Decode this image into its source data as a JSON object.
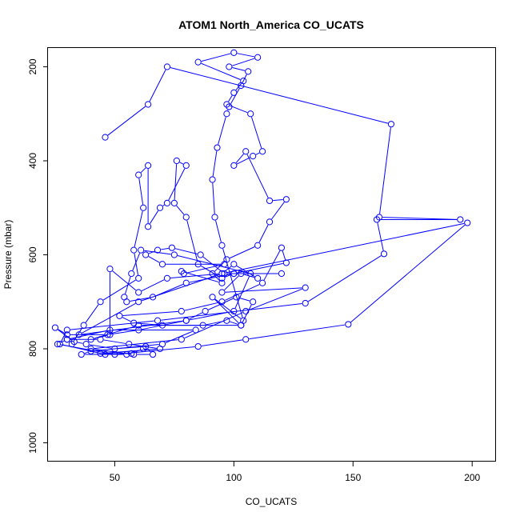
{
  "chart_data": {
    "type": "line",
    "title": "ATOM1 North_America CO_UCATS",
    "xlabel": "CO_UCATS",
    "ylabel": "Pressure (mbar)",
    "xlim": [
      22,
      210
    ],
    "ylim": [
      1040,
      160
    ],
    "y_reversed": true,
    "xticks": [
      50,
      100,
      150,
      200
    ],
    "yticks": [
      200,
      400,
      600,
      800,
      1000
    ],
    "grid": false,
    "line_color": "#0000ff",
    "marker": "open-circle",
    "series": [
      {
        "points": [
          [
            46,
            350
          ],
          [
            64,
            280
          ],
          [
            72,
            200
          ],
          [
            166,
            322
          ],
          [
            161,
            520
          ],
          [
            195,
            525
          ],
          [
            160,
            525
          ],
          [
            163,
            598
          ],
          [
            130,
            703
          ],
          [
            68,
            740
          ],
          [
            30,
            760
          ],
          [
            27,
            790
          ],
          [
            46,
            812
          ],
          [
            55,
            812
          ],
          [
            36,
            812
          ],
          [
            40,
            805
          ],
          [
            70,
            790
          ],
          [
            84,
            760
          ],
          [
            48,
            760
          ],
          [
            30,
            780
          ],
          [
            26,
            790
          ],
          [
            50,
            812
          ],
          [
            85,
            795
          ],
          [
            105,
            780
          ],
          [
            148,
            748
          ],
          [
            198,
            532
          ],
          [
            95,
            640
          ],
          [
            72,
            650
          ],
          [
            60,
            680
          ],
          [
            48,
            630
          ],
          [
            48,
            770
          ],
          [
            40,
            780
          ],
          [
            60,
            750
          ],
          [
            103,
            750
          ],
          [
            108,
            700
          ],
          [
            101,
            690
          ],
          [
            88,
            720
          ],
          [
            80,
            740
          ],
          [
            35,
            770
          ],
          [
            60,
            700
          ],
          [
            95,
            640
          ],
          [
            100,
            620
          ],
          [
            110,
            650
          ],
          [
            103,
            640
          ],
          [
            95,
            680
          ],
          [
            130,
            670
          ],
          [
            105,
            720
          ],
          [
            78,
            780
          ],
          [
            40,
            800
          ],
          [
            58,
            812
          ],
          [
            66,
            812
          ],
          [
            63,
            795
          ],
          [
            50,
            800
          ],
          [
            38,
            790
          ],
          [
            33,
            785
          ],
          [
            25,
            755
          ],
          [
            30,
            770
          ],
          [
            47,
            770
          ],
          [
            60,
            760
          ],
          [
            80,
            740
          ],
          [
            100,
            720
          ],
          [
            107,
            640
          ],
          [
            75,
            600
          ],
          [
            61,
            590
          ],
          [
            57,
            640
          ],
          [
            54,
            690
          ],
          [
            55,
            700
          ],
          [
            66,
            690
          ],
          [
            80,
            660
          ],
          [
            100,
            640
          ],
          [
            122,
            617
          ],
          [
            120,
            585
          ],
          [
            112,
            660
          ],
          [
            95,
            700
          ],
          [
            78,
            720
          ],
          [
            52,
            730
          ],
          [
            58,
            745
          ],
          [
            70,
            750
          ],
          [
            87,
            750
          ],
          [
            97,
            740
          ],
          [
            103,
            750
          ],
          [
            91,
            690
          ],
          [
            104,
            740
          ],
          [
            95,
            580
          ],
          [
            92,
            520
          ],
          [
            91,
            440
          ],
          [
            93,
            372
          ],
          [
            97,
            300
          ],
          [
            98,
            285
          ],
          [
            103,
            240
          ],
          [
            106,
            210
          ],
          [
            98,
            200
          ],
          [
            110,
            180
          ],
          [
            100,
            170
          ],
          [
            85,
            190
          ],
          [
            104,
            230
          ],
          [
            100,
            255
          ],
          [
            97,
            280
          ],
          [
            107,
            300
          ],
          [
            112,
            380
          ],
          [
            108,
            390
          ],
          [
            100,
            410
          ],
          [
            105,
            380
          ],
          [
            115,
            485
          ],
          [
            122,
            482
          ],
          [
            115,
            530
          ],
          [
            110,
            580
          ],
          [
            97,
            610
          ],
          [
            91,
            640
          ],
          [
            95,
            660
          ],
          [
            78,
            635
          ],
          [
            79,
            640
          ],
          [
            96,
            620
          ],
          [
            70,
            620
          ],
          [
            63,
            600
          ],
          [
            68,
            590
          ],
          [
            74,
            585
          ],
          [
            86,
            600
          ],
          [
            96,
            640
          ],
          [
            120,
            640
          ],
          [
            100,
            640
          ],
          [
            95,
            650
          ],
          [
            85,
            620
          ],
          [
            80,
            520
          ],
          [
            75,
            490
          ],
          [
            76,
            400
          ],
          [
            80,
            410
          ],
          [
            72,
            490
          ],
          [
            69,
            500
          ],
          [
            64,
            540
          ],
          [
            64,
            410
          ],
          [
            60,
            430
          ],
          [
            62,
            500
          ],
          [
            58,
            590
          ],
          [
            60,
            650
          ],
          [
            44,
            700
          ],
          [
            37,
            750
          ],
          [
            32,
            790
          ],
          [
            30,
            780
          ],
          [
            44,
            780
          ],
          [
            56,
            790
          ],
          [
            69,
            800
          ],
          [
            44,
            810
          ],
          [
            57,
            810
          ],
          [
            62,
            800
          ]
        ]
      }
    ]
  }
}
